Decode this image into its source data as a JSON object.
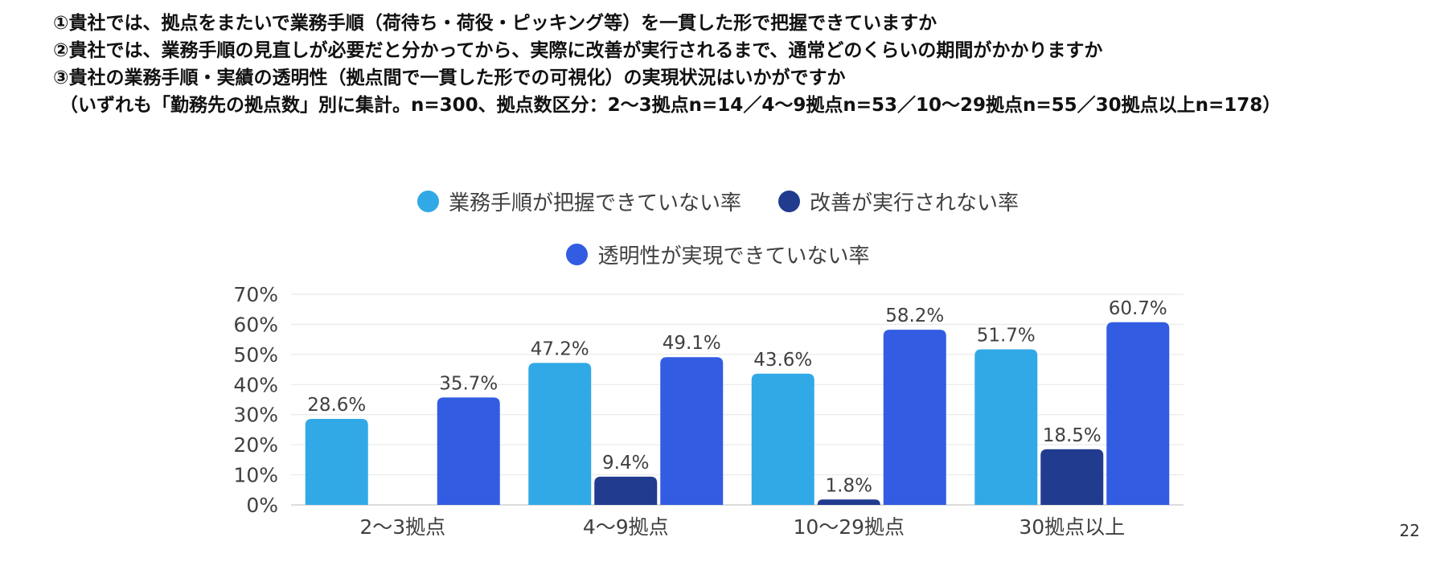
{
  "questions": [
    "①貴社では、拠点をまたいで業務手順（荷待ち・荷役・ピッキング等）を一貫した形で把握できていますか",
    "②貴社では、業務手順の見直しが必要だと分かってから、実際に改善が実行されるまで、通常どのくらいの期間がかかりますか",
    "③貴社の業務手順・実績の透明性（拠点間で一貫した形での可視化）の実現状況はいかがですか"
  ],
  "note": "（いずれも「勤務先の拠点数」別に集計。n=300、拠点数区分：2〜3拠点n=14／4〜9拠点n=53／10〜29拠点n=55／30拠点以上n=178）",
  "page_number": "22",
  "chart_data": {
    "type": "bar",
    "categories": [
      "2〜3拠点",
      "4〜9拠点",
      "10〜29拠点",
      "30拠点以上"
    ],
    "series": [
      {
        "name": "業務手順が把握できていない率",
        "color": "#31a9e6",
        "values": [
          28.6,
          47.2,
          43.6,
          51.7
        ],
        "labels": [
          "28.6%",
          "47.2%",
          "43.6%",
          "51.7%"
        ]
      },
      {
        "name": "改善が実行されない率",
        "color": "#213b8f",
        "values": [
          null,
          9.4,
          1.8,
          18.5
        ],
        "labels": [
          "",
          "9.4%",
          "1.8%",
          "18.5%"
        ]
      },
      {
        "name": "透明性が実現できていない率",
        "color": "#325ce1",
        "values": [
          35.7,
          49.1,
          58.2,
          60.7
        ],
        "labels": [
          "35.7%",
          "49.1%",
          "58.2%",
          "60.7%"
        ]
      }
    ],
    "ylim": [
      0,
      70
    ],
    "yticks": [
      "0%",
      "10%",
      "20%",
      "30%",
      "40%",
      "50%",
      "60%",
      "70%"
    ],
    "grid": true,
    "legend_position": "top"
  }
}
